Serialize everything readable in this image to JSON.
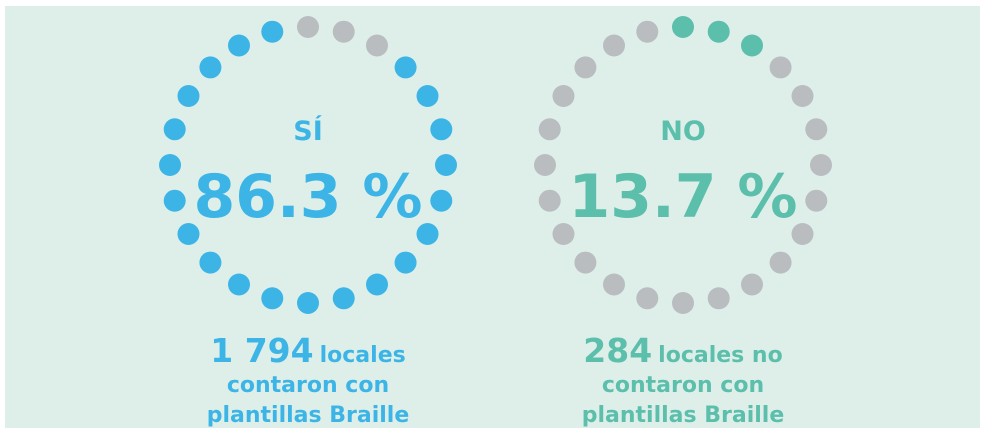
{
  "dots_per_ring": 24,
  "empty_color": "#b9bdc0",
  "panels": [
    {
      "label": "SÍ",
      "value": 86.3,
      "value_label": "86.3 %",
      "count": "1 794",
      "caption": [
        "locales",
        "contaron con",
        "plantillas Braille"
      ],
      "color": "#3cb5e6",
      "fill_from": "end"
    },
    {
      "label": "NO",
      "value": 13.7,
      "value_label": "13.7 %",
      "count": "284",
      "caption": [
        "locales no",
        "contaron con",
        "plantillas Braille"
      ],
      "color": "#5cbfab",
      "fill_from": "start"
    }
  ]
}
